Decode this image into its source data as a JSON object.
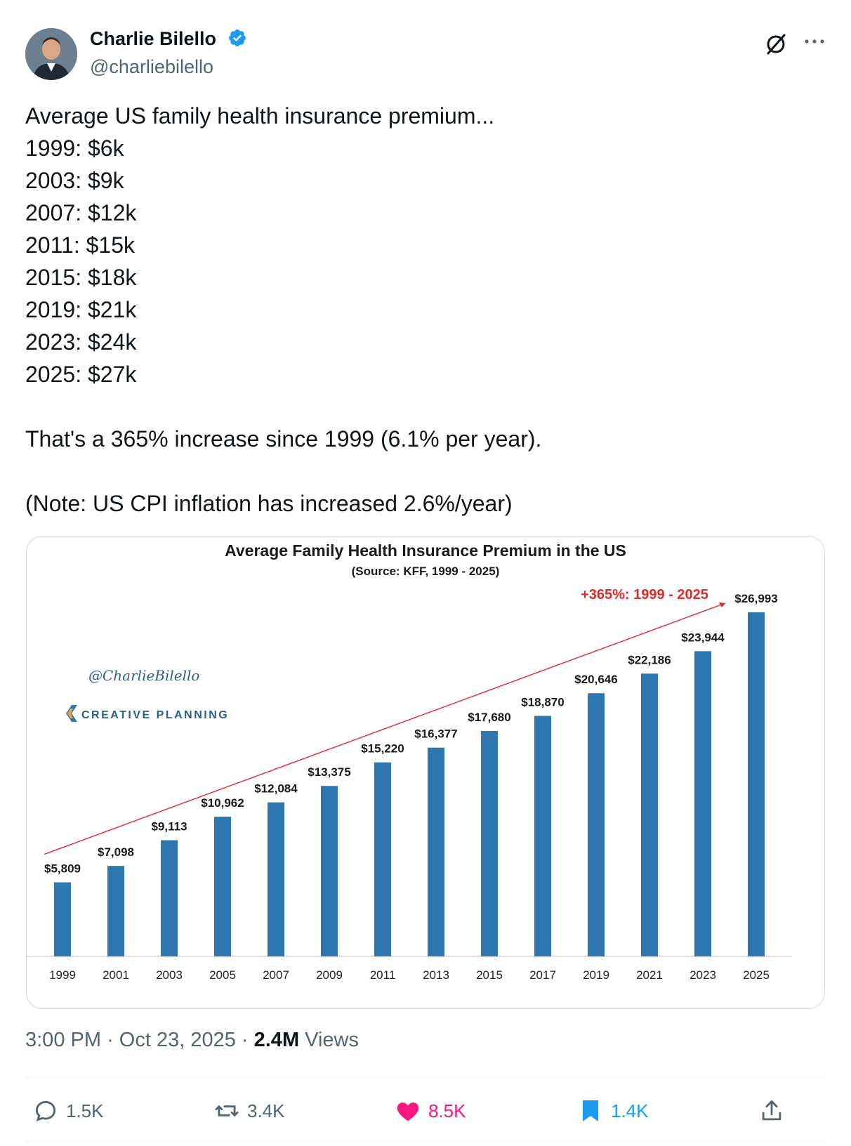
{
  "author": {
    "name": "Charlie Bilello",
    "handle": "@charliebilello",
    "verified_color": "#1d9bf0"
  },
  "icons": {
    "grok": "grok-slash-circle-icon",
    "more": "more-dots-icon",
    "reply": "reply-bubble-icon",
    "retweet": "retweet-arrows-icon",
    "like": "heart-icon",
    "bookmark": "bookmark-icon",
    "share": "share-upload-icon"
  },
  "tweet": {
    "lines": [
      "Average US family health insurance premium...",
      "1999: $6k",
      "2003: $9k",
      "2007: $12k",
      "2011: $15k",
      "2015: $18k",
      "2019: $21k",
      "2023: $24k",
      "2025: $27k"
    ],
    "summary": "That's a 365% increase since 1999 (6.1% per year).",
    "note": "(Note: US CPI inflation has increased 2.6%/year)"
  },
  "chart_data": {
    "type": "bar",
    "title": "Average Family Health Insurance Premium in the US",
    "subtitle": "(Source: KFF, 1999 - 2025)",
    "categories": [
      "1999",
      "2001",
      "2003",
      "2005",
      "2007",
      "2009",
      "2011",
      "2013",
      "2015",
      "2017",
      "2019",
      "2021",
      "2023",
      "2025"
    ],
    "values": [
      5809,
      7098,
      9113,
      10962,
      12084,
      13375,
      15220,
      16377,
      17680,
      18870,
      20646,
      22186,
      23944,
      26993
    ],
    "value_labels": [
      "$5,809",
      "$7,098",
      "$9,113",
      "$10,962",
      "$12,084",
      "$13,375",
      "$15,220",
      "$16,377",
      "$17,680",
      "$18,870",
      "$20,646",
      "$22,186",
      "$23,944",
      "$26,993"
    ],
    "ylim": [
      0,
      28000
    ],
    "bar_color": "#2e78b2",
    "trend_annotation": "+365%: 1999 - 2025",
    "trend_color": "#e02a2a",
    "watermark_handle": "@CharlieBilello",
    "watermark_brand": "CREATIVE PLANNING",
    "xlabel": "",
    "ylabel": ""
  },
  "meta": {
    "time": "3:00 PM",
    "date": "Oct 23, 2025",
    "views_count": "2.4M",
    "views_label": "Views"
  },
  "actions": {
    "replies": "1.5K",
    "retweets": "3.4K",
    "likes": "8.5K",
    "bookmarks": "1.4K",
    "like_color": "#f91880",
    "bookmark_color": "#1d9bf0"
  }
}
